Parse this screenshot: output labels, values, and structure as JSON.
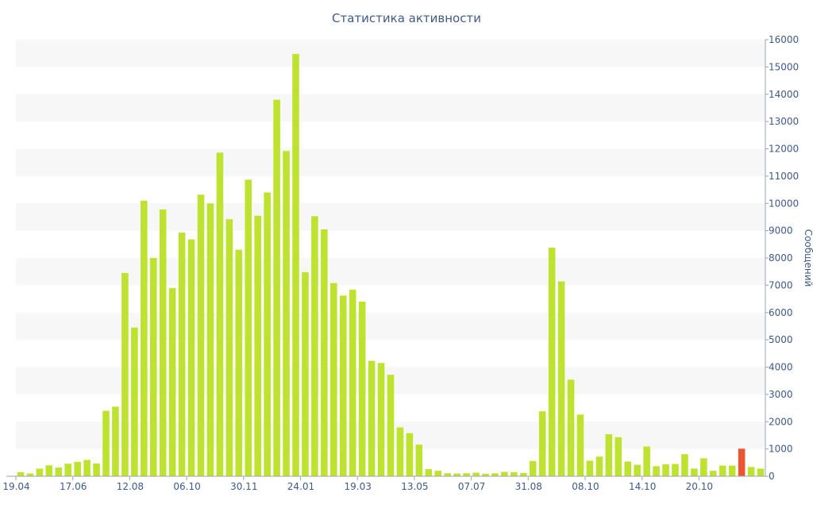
{
  "chart_data": {
    "type": "bar",
    "title": "Статистика активности",
    "ylabel": "Сообщений",
    "ylim": [
      0,
      16000
    ],
    "yticks": [
      0,
      1000,
      2000,
      3000,
      4000,
      5000,
      6000,
      7000,
      8000,
      9000,
      10000,
      11000,
      12000,
      13000,
      14000,
      15000,
      16000
    ],
    "x_tick_labels": [
      {
        "index": 0,
        "label": "19.04"
      },
      {
        "index": 6,
        "label": "17.06"
      },
      {
        "index": 12,
        "label": "12.08"
      },
      {
        "index": 18,
        "label": "06.10"
      },
      {
        "index": 24,
        "label": "30.11"
      },
      {
        "index": 30,
        "label": "24.01"
      },
      {
        "index": 36,
        "label": "19.03"
      },
      {
        "index": 42,
        "label": "13.05"
      },
      {
        "index": 48,
        "label": "07.07"
      },
      {
        "index": 54,
        "label": "31.08"
      },
      {
        "index": 60,
        "label": "08.10"
      },
      {
        "index": 66,
        "label": "14.10"
      },
      {
        "index": 72,
        "label": "20.10"
      }
    ],
    "bar_color": "#bde330",
    "highlight_color": "#e8572f",
    "grid": "horizontal-bands",
    "band_color": "#f7f7f7",
    "highlight_index": 76,
    "values": [
      150,
      100,
      280,
      400,
      320,
      460,
      530,
      600,
      470,
      2400,
      2550,
      7450,
      5450,
      10100,
      8000,
      9780,
      6900,
      8930,
      8680,
      10320,
      10000,
      11860,
      9420,
      8300,
      10870,
      9550,
      10400,
      13800,
      11920,
      15480,
      7480,
      9530,
      9050,
      7080,
      6620,
      6840,
      6400,
      4230,
      4150,
      3720,
      1790,
      1580,
      1160,
      260,
      200,
      110,
      100,
      110,
      130,
      90,
      110,
      160,
      150,
      120,
      560,
      2380,
      8380,
      7140,
      3540,
      2260,
      570,
      720,
      1540,
      1430,
      540,
      420,
      1090,
      370,
      440,
      450,
      810,
      280,
      660,
      200,
      390,
      390,
      1010,
      340,
      280
    ]
  }
}
